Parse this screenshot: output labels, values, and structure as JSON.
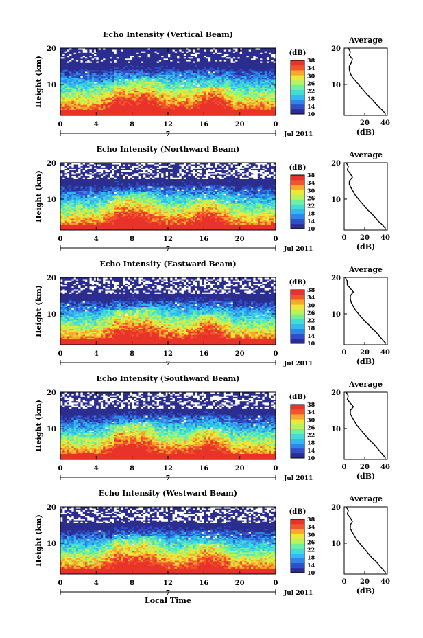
{
  "figure": {
    "x_shared_label": "Local Time",
    "colorbar_unit": "(dB)",
    "colorbar_ticks": [
      "10",
      "14",
      "18",
      "22",
      "26",
      "30",
      "34",
      "38"
    ],
    "colorbar_colors": [
      "#2b2d8f",
      "#2f4fc9",
      "#2f86e6",
      "#33b8f0",
      "#41dcd6",
      "#6ff0a0",
      "#b9f25a",
      "#f0e63a",
      "#f7a92b",
      "#f2552a",
      "#e8322a"
    ],
    "no_data_color": "#ffffff"
  },
  "chart_data": [
    {
      "type": "heatmap",
      "title": "Echo Intensity (Vertical Beam)",
      "ylabel": "Height (km)",
      "xlabel": "",
      "x_range": [
        0,
        24
      ],
      "x_ticks": [
        "0",
        "4",
        "8",
        "12",
        "16",
        "20",
        "0"
      ],
      "date_marker": "7",
      "date_label": "Jul 2011",
      "y_range": [
        1.5,
        20
      ],
      "y_ticks": [
        "10",
        "20"
      ],
      "color_range_db": [
        10,
        38
      ],
      "near_surface_db": 38,
      "tropopause_km": 16,
      "noise_fraction": 0.08,
      "convective_bursts": [
        [
          6.5,
          10
        ],
        [
          9.5,
          12
        ],
        [
          17,
          9
        ]
      ],
      "profile": {
        "title": "Average",
        "xlabel": "(dB)",
        "x_ticks": [
          "20",
          "40"
        ],
        "x_tick_values": [
          20,
          40
        ],
        "x_range": [
          0,
          42
        ],
        "y_ticks": [
          "10",
          "20"
        ],
        "y_range": [
          1.5,
          20
        ],
        "heights_km": [
          2,
          3,
          4,
          5,
          6,
          7,
          8,
          9,
          10,
          11,
          12,
          13,
          14,
          15,
          16,
          17,
          18,
          19,
          20
        ],
        "values_db": [
          40,
          37,
          33,
          30,
          27,
          23,
          20,
          17,
          14,
          11,
          8,
          6,
          5,
          5,
          7,
          8,
          5,
          6,
          4
        ]
      }
    },
    {
      "type": "heatmap",
      "title": "Echo Intensity (Northward Beam)",
      "ylabel": "Height (km)",
      "xlabel": "",
      "x_range": [
        0,
        24
      ],
      "x_ticks": [
        "0",
        "4",
        "8",
        "12",
        "16",
        "20",
        "0"
      ],
      "date_marker": "7",
      "date_label": "Jul 2011",
      "y_range": [
        1.5,
        20
      ],
      "y_ticks": [
        "10",
        "20"
      ],
      "color_range_db": [
        10,
        38
      ],
      "near_surface_db": 37,
      "tropopause_km": 15.5,
      "noise_fraction": 0.18,
      "convective_bursts": [
        [
          6.5,
          11
        ],
        [
          9,
          12
        ],
        [
          16.5,
          10
        ]
      ],
      "profile": {
        "title": "Average",
        "xlabel": "(dB)",
        "x_ticks": [
          "0",
          "20",
          "40"
        ],
        "x_tick_values": [
          0,
          20,
          40
        ],
        "x_range": [
          0,
          42
        ],
        "y_ticks": [
          "10",
          "20"
        ],
        "y_range": [
          1.5,
          20
        ],
        "heights_km": [
          2,
          3,
          4,
          5,
          6,
          7,
          8,
          9,
          10,
          11,
          12,
          13,
          14,
          15,
          16,
          17,
          18,
          19,
          20
        ],
        "values_db": [
          40,
          37,
          33,
          30,
          27,
          23,
          20,
          17,
          14,
          11,
          9,
          7,
          5,
          5,
          8,
          6,
          3,
          4,
          2
        ]
      }
    },
    {
      "type": "heatmap",
      "title": "Echo Intensity (Eastward Beam)",
      "ylabel": "Height (km)",
      "xlabel": "",
      "x_range": [
        0,
        24
      ],
      "x_ticks": [
        "0",
        "4",
        "8",
        "12",
        "16",
        "20",
        "0"
      ],
      "date_marker": "7",
      "date_label": "Jul 2011",
      "y_range": [
        1.5,
        20
      ],
      "y_ticks": [
        "10",
        "20"
      ],
      "color_range_db": [
        10,
        38
      ],
      "near_surface_db": 37,
      "tropopause_km": 15.5,
      "noise_fraction": 0.18,
      "convective_bursts": [
        [
          6.5,
          11
        ],
        [
          9.5,
          12
        ],
        [
          16.5,
          10
        ]
      ],
      "profile": {
        "title": "Average",
        "xlabel": "(dB)",
        "x_ticks": [
          "0",
          "20",
          "40"
        ],
        "x_tick_values": [
          0,
          20,
          40
        ],
        "x_range": [
          0,
          42
        ],
        "y_ticks": [
          "10",
          "20"
        ],
        "y_range": [
          1.5,
          20
        ],
        "heights_km": [
          2,
          3,
          4,
          5,
          6,
          7,
          8,
          9,
          10,
          11,
          12,
          13,
          14,
          15,
          16,
          17,
          18,
          19,
          20
        ],
        "values_db": [
          40,
          37,
          34,
          31,
          27,
          24,
          20,
          17,
          14,
          11,
          9,
          7,
          6,
          6,
          9,
          6,
          3,
          3,
          1
        ]
      }
    },
    {
      "type": "heatmap",
      "title": "Echo Intensity (Southward Beam)",
      "ylabel": "Height (km)",
      "xlabel": "",
      "x_range": [
        0,
        24
      ],
      "x_ticks": [
        "0",
        "4",
        "8",
        "12",
        "16",
        "20",
        "0"
      ],
      "date_marker": "7",
      "date_label": "Jul 2011",
      "y_range": [
        1.5,
        20
      ],
      "y_ticks": [
        "10",
        "20"
      ],
      "color_range_db": [
        10,
        38
      ],
      "near_surface_db": 37,
      "tropopause_km": 15.5,
      "noise_fraction": 0.18,
      "convective_bursts": [
        [
          6.5,
          11
        ],
        [
          9,
          12
        ],
        [
          16.5,
          10
        ]
      ],
      "profile": {
        "title": "Average",
        "xlabel": "(dB)",
        "x_ticks": [
          "0",
          "20",
          "40"
        ],
        "x_tick_values": [
          0,
          20,
          40
        ],
        "x_range": [
          0,
          42
        ],
        "y_ticks": [
          "10",
          "20"
        ],
        "y_range": [
          1.5,
          20
        ],
        "heights_km": [
          2,
          3,
          4,
          5,
          6,
          7,
          8,
          9,
          10,
          11,
          12,
          13,
          14,
          15,
          16,
          17,
          18,
          19,
          20
        ],
        "values_db": [
          40,
          37,
          34,
          31,
          28,
          24,
          21,
          18,
          15,
          12,
          10,
          8,
          6,
          6,
          9,
          6,
          3,
          4,
          2
        ]
      }
    },
    {
      "type": "heatmap",
      "title": "Echo Intensity (Westward Beam)",
      "ylabel": "Height (km)",
      "xlabel": "Local Time",
      "x_range": [
        0,
        24
      ],
      "x_ticks": [
        "0",
        "4",
        "8",
        "12",
        "16",
        "20",
        "0"
      ],
      "date_marker": "7",
      "date_label": "Jul 2011",
      "y_range": [
        1.5,
        20
      ],
      "y_ticks": [
        "10",
        "20"
      ],
      "color_range_db": [
        10,
        38
      ],
      "near_surface_db": 37,
      "tropopause_km": 15.5,
      "noise_fraction": 0.18,
      "convective_bursts": [
        [
          6.5,
          11
        ],
        [
          9.5,
          12
        ],
        [
          16.5,
          10
        ]
      ],
      "profile": {
        "title": "Average",
        "xlabel": "(dB)",
        "x_ticks": [
          "0",
          "20",
          "40"
        ],
        "x_tick_values": [
          0,
          20,
          40
        ],
        "x_range": [
          0,
          42
        ],
        "y_ticks": [
          "10",
          "20"
        ],
        "y_range": [
          1.5,
          20
        ],
        "heights_km": [
          2,
          3,
          4,
          5,
          6,
          7,
          8,
          9,
          10,
          11,
          12,
          13,
          14,
          15,
          16,
          17,
          18,
          19,
          20
        ],
        "values_db": [
          40,
          37,
          34,
          31,
          27,
          24,
          21,
          18,
          15,
          12,
          10,
          8,
          6,
          6,
          8,
          6,
          3,
          4,
          2
        ]
      }
    }
  ]
}
